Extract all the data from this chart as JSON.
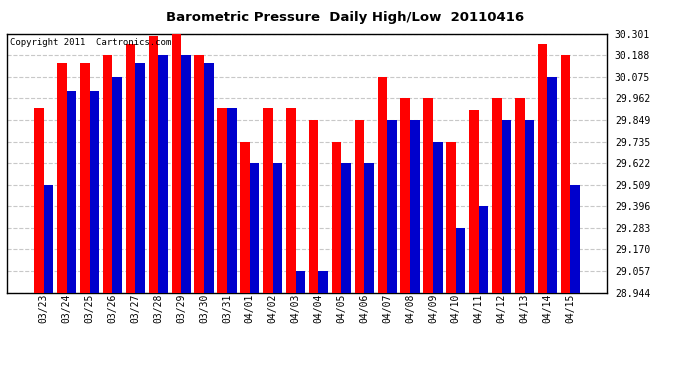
{
  "title": "Barometric Pressure  Daily High/Low  20110416",
  "copyright": "Copyright 2011  Cartronics.com",
  "background_color": "#ffffff",
  "plot_bg_color": "#ffffff",
  "grid_color": "#c8c8c8",
  "bar_color_high": "#ff0000",
  "bar_color_low": "#0000cc",
  "ylim": [
    28.944,
    30.301
  ],
  "yticks": [
    28.944,
    29.057,
    29.17,
    29.283,
    29.396,
    29.509,
    29.622,
    29.735,
    29.849,
    29.962,
    30.075,
    30.188,
    30.301
  ],
  "dates": [
    "03/23",
    "03/24",
    "03/25",
    "03/26",
    "03/27",
    "03/28",
    "03/29",
    "03/30",
    "03/31",
    "04/01",
    "04/02",
    "04/03",
    "04/04",
    "04/05",
    "04/06",
    "04/07",
    "04/08",
    "04/09",
    "04/10",
    "04/11",
    "04/12",
    "04/13",
    "04/14",
    "04/15"
  ],
  "highs": [
    29.91,
    30.15,
    30.15,
    30.188,
    30.245,
    30.29,
    30.301,
    30.188,
    29.912,
    29.735,
    29.912,
    29.912,
    29.849,
    29.735,
    29.849,
    30.075,
    29.962,
    29.962,
    29.735,
    29.9,
    29.962,
    29.962,
    30.245,
    30.188
  ],
  "lows": [
    29.509,
    30.0,
    30.0,
    30.075,
    30.15,
    30.188,
    30.188,
    30.15,
    29.912,
    29.622,
    29.622,
    29.057,
    29.057,
    29.622,
    29.622,
    29.849,
    29.849,
    29.735,
    29.283,
    29.396,
    29.849,
    29.849,
    30.075,
    29.509
  ]
}
